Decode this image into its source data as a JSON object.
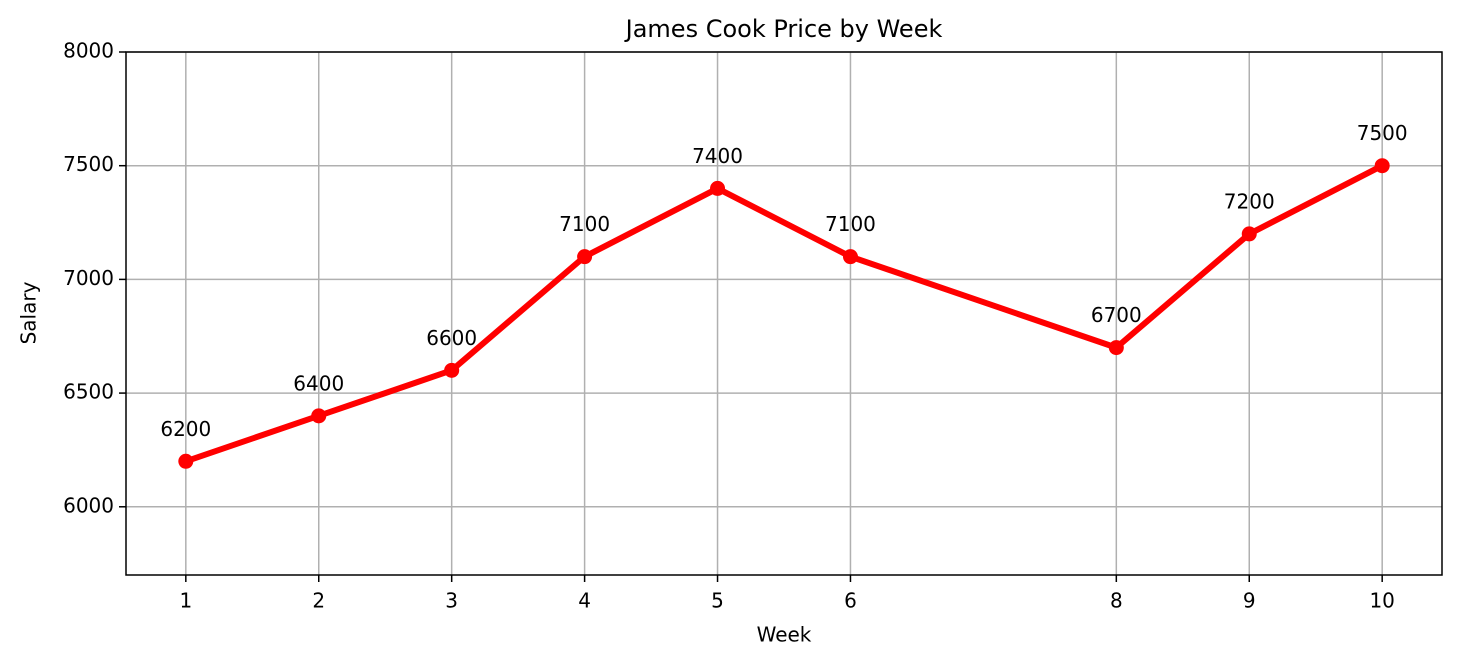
{
  "chart_data": {
    "type": "line",
    "title": "James Cook Price by Week",
    "xlabel": "Week",
    "ylabel": "Salary",
    "x": [
      1,
      2,
      3,
      4,
      5,
      6,
      8,
      9,
      10
    ],
    "values": [
      6200,
      6400,
      6600,
      7100,
      7400,
      7100,
      6700,
      7200,
      7500
    ],
    "color": "#ff0000",
    "xlim": [
      0.55,
      10.45
    ],
    "xticks": [
      1,
      2,
      3,
      4,
      5,
      6,
      8,
      9,
      10
    ],
    "ylim": [
      5700,
      8000
    ],
    "yticks": [
      6000,
      6500,
      7000,
      7500,
      8000
    ],
    "grid": true
  }
}
